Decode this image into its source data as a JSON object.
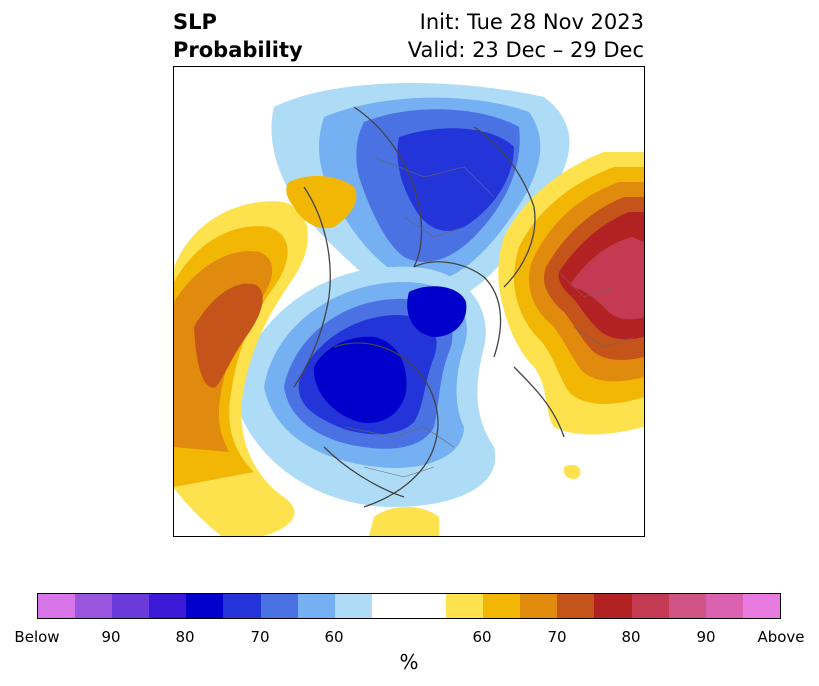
{
  "title": {
    "left_line1": "SLP",
    "left_line2": "Probability",
    "init": "Init: Tue 28 Nov 2023",
    "valid": "Valid: 23 Dec – 29 Dec"
  },
  "map": {
    "projection": "north-polar-stereographic",
    "features": [
      "coastlines",
      "country-borders",
      "state-borders"
    ]
  },
  "colorbar": {
    "unit": "%",
    "colors": [
      "#d876e9",
      "#9b56e0",
      "#6a3ada",
      "#3a1ad6",
      "#0000cc",
      "#2335d9",
      "#4a72e3",
      "#75b0f2",
      "#aedcf7",
      "#ffffff",
      "#ffffff",
      "#fde24d",
      "#f2b705",
      "#e08a0e",
      "#c5541a",
      "#b22222",
      "#c43a52",
      "#cf5384",
      "#da62b0",
      "#e77be0"
    ],
    "ticks": [
      {
        "label": "Below"
      },
      {
        "label": "90"
      },
      {
        "label": "80"
      },
      {
        "label": "70"
      },
      {
        "label": "60"
      },
      {
        "label": "60"
      },
      {
        "label": "70"
      },
      {
        "label": "80"
      },
      {
        "label": "90"
      },
      {
        "label": "Above"
      }
    ]
  }
}
